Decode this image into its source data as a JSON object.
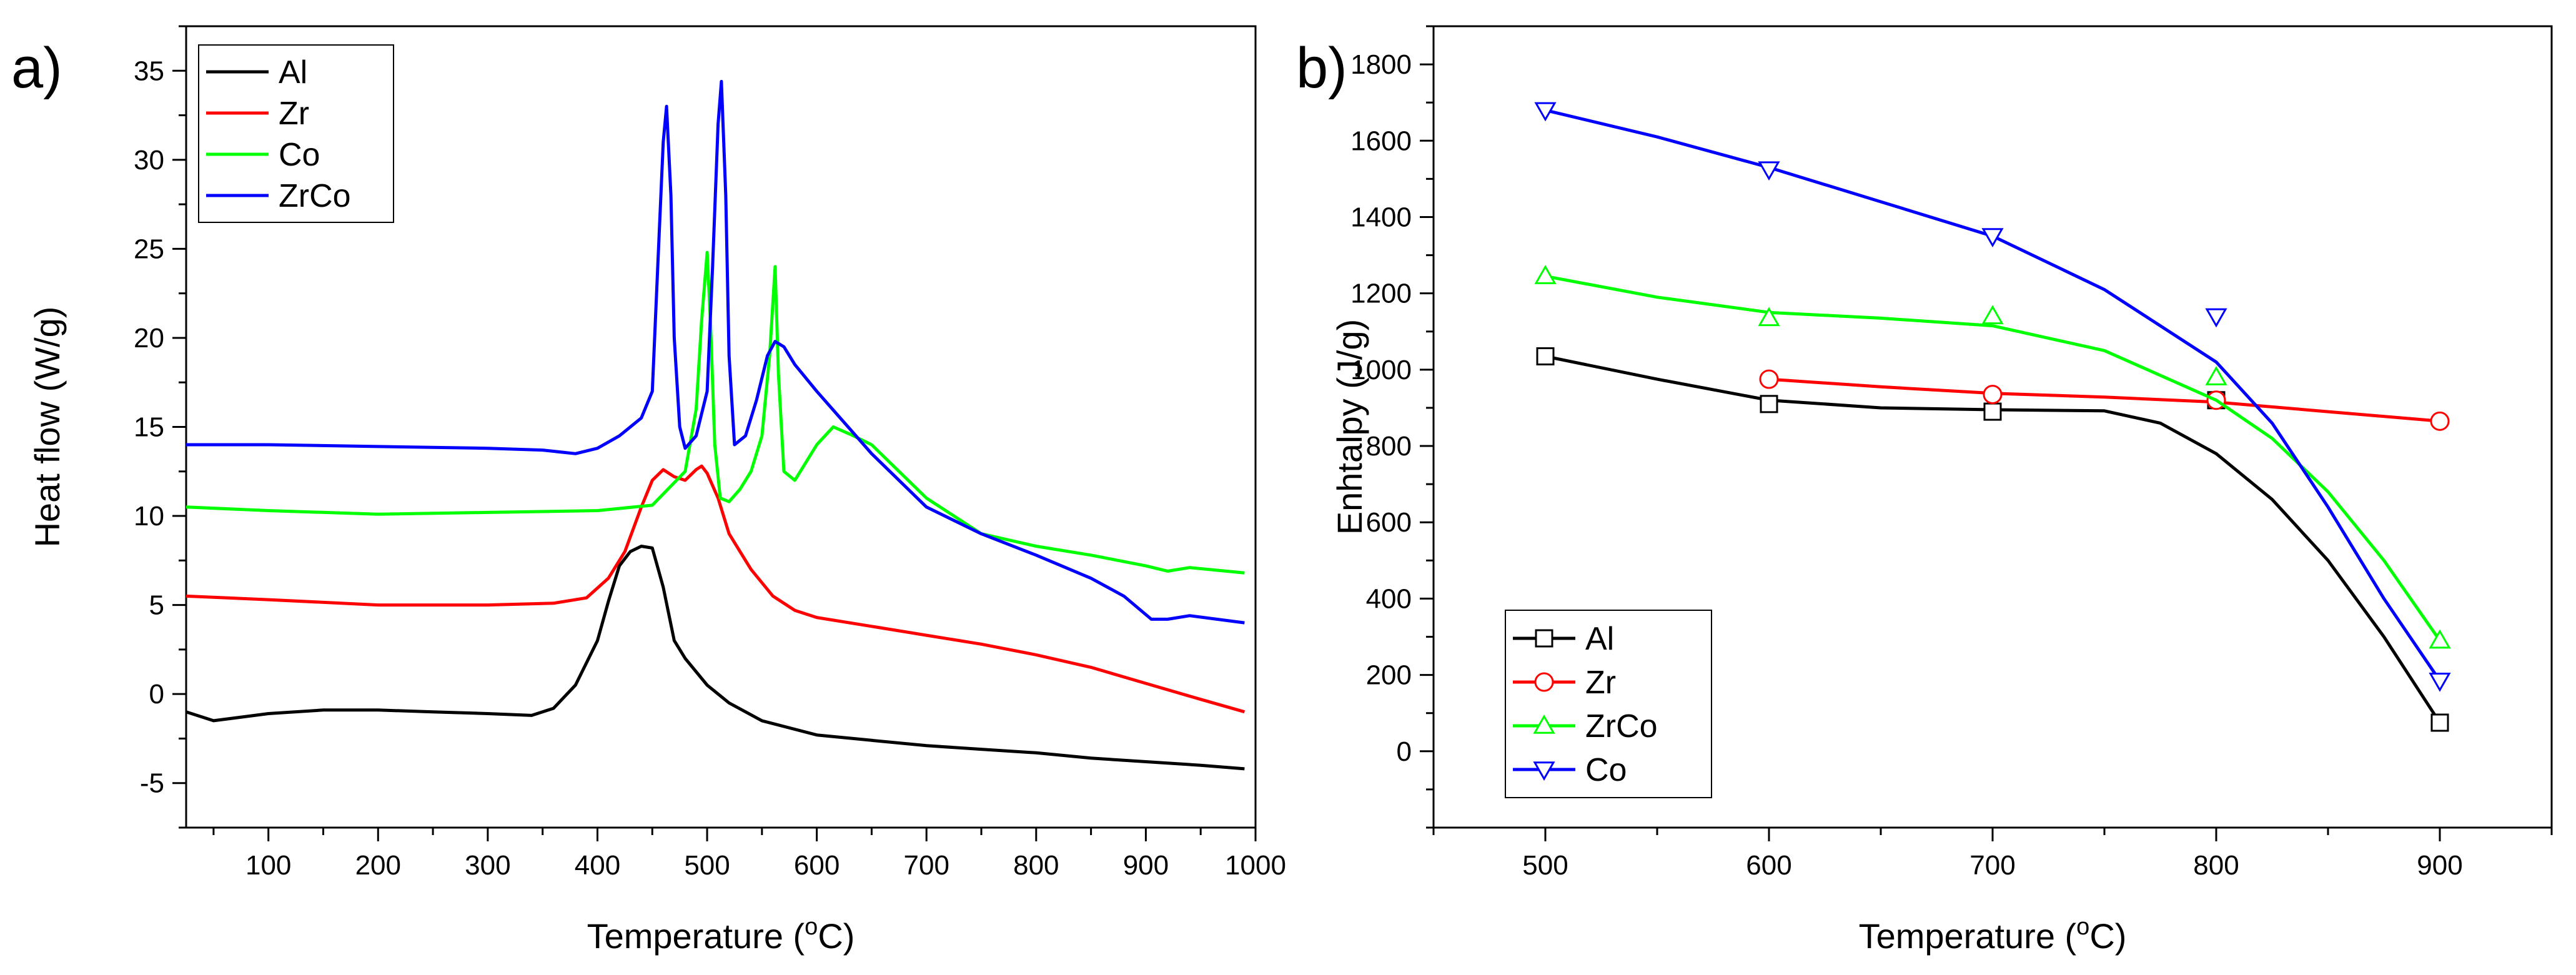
{
  "chart_data": [
    {
      "panel_label": "a)",
      "type": "line",
      "title": "",
      "xlabel": "Temperature (",
      "xlabel_sup": "o",
      "xlabel_unit": "C)",
      "ylabel": "Heat flow (W/g)",
      "xlim": [
        25,
        1000
      ],
      "ylim": [
        -7.5,
        37.5
      ],
      "xticks": [
        "100",
        "200",
        "300",
        "400",
        "500",
        "600",
        "700",
        "800",
        "900",
        "1000"
      ],
      "yticks": [
        "-5",
        "0",
        "5",
        "10",
        "15",
        "20",
        "25",
        "30",
        "35"
      ],
      "legend_position": "top-left",
      "series": [
        {
          "name": "Al",
          "color": "#000000",
          "x": [
            25,
            50,
            100,
            150,
            200,
            250,
            300,
            340,
            360,
            380,
            400,
            410,
            420,
            430,
            440,
            450,
            460,
            470,
            480,
            500,
            520,
            550,
            600,
            650,
            700,
            750,
            800,
            850,
            900,
            950,
            990
          ],
          "y": [
            -1.0,
            -1.5,
            -1.1,
            -0.9,
            -0.9,
            -1.0,
            -1.1,
            -1.2,
            -0.8,
            0.5,
            3.0,
            5.2,
            7.2,
            8.0,
            8.3,
            8.2,
            6.0,
            3.0,
            2.0,
            0.5,
            -0.5,
            -1.5,
            -2.3,
            -2.6,
            -2.9,
            -3.1,
            -3.3,
            -3.6,
            -3.8,
            -4.0,
            -4.2
          ]
        },
        {
          "name": "Zr",
          "color": "#ff0000",
          "x": [
            25,
            100,
            200,
            300,
            360,
            390,
            410,
            425,
            440,
            450,
            460,
            470,
            480,
            490,
            495,
            500,
            510,
            520,
            540,
            560,
            580,
            600,
            650,
            700,
            750,
            800,
            850,
            900,
            950,
            990
          ],
          "y": [
            5.5,
            5.3,
            5.0,
            5.0,
            5.1,
            5.4,
            6.5,
            8.0,
            10.5,
            12.0,
            12.6,
            12.2,
            12.0,
            12.6,
            12.8,
            12.4,
            11.0,
            9.0,
            7.0,
            5.5,
            4.7,
            4.3,
            3.8,
            3.3,
            2.8,
            2.2,
            1.5,
            0.6,
            -0.3,
            -1.0
          ]
        },
        {
          "name": "Co",
          "color": "#00ff00",
          "x": [
            25,
            100,
            200,
            300,
            400,
            450,
            480,
            490,
            495,
            500,
            503,
            507,
            512,
            520,
            530,
            540,
            550,
            557,
            562,
            565,
            570,
            580,
            600,
            615,
            630,
            650,
            700,
            750,
            800,
            850,
            900,
            920,
            940,
            990
          ],
          "y": [
            10.5,
            10.3,
            10.1,
            10.2,
            10.3,
            10.6,
            12.5,
            16.0,
            21.0,
            24.8,
            21.0,
            14.0,
            11.0,
            10.8,
            11.5,
            12.5,
            14.5,
            19.0,
            24.0,
            18.0,
            12.5,
            12.0,
            14.0,
            15.0,
            14.6,
            14.0,
            11.0,
            9.0,
            8.3,
            7.8,
            7.2,
            6.9,
            7.1,
            6.8
          ]
        },
        {
          "name": "ZrCo",
          "color": "#0000ff",
          "x": [
            25,
            100,
            200,
            300,
            350,
            380,
            400,
            420,
            440,
            450,
            455,
            460,
            463,
            467,
            470,
            475,
            480,
            490,
            500,
            505,
            510,
            513,
            517,
            520,
            525,
            535,
            545,
            555,
            562,
            570,
            580,
            600,
            650,
            700,
            750,
            800,
            850,
            880,
            905,
            920,
            940,
            990
          ],
          "y": [
            14.0,
            14.0,
            13.9,
            13.8,
            13.7,
            13.5,
            13.8,
            14.5,
            15.5,
            17.0,
            24.0,
            31.0,
            33.0,
            28.0,
            20.0,
            15.0,
            13.8,
            14.5,
            17.0,
            24.0,
            32.0,
            34.4,
            28.0,
            19.0,
            14.0,
            14.5,
            16.5,
            19.0,
            19.8,
            19.5,
            18.5,
            17.0,
            13.5,
            10.5,
            9.0,
            7.8,
            6.5,
            5.5,
            4.2,
            4.2,
            4.4,
            4.0
          ]
        }
      ]
    },
    {
      "panel_label": "b)",
      "type": "line",
      "title": "",
      "xlabel": "Temperature (",
      "xlabel_sup": "o",
      "xlabel_unit": "C)",
      "ylabel": "Enhtalpy (J/g)",
      "xlim": [
        450,
        950
      ],
      "ylim": [
        -200,
        1900
      ],
      "xticks": [
        "500",
        "600",
        "700",
        "800",
        "900"
      ],
      "yticks": [
        "0",
        "200",
        "400",
        "600",
        "800",
        "1000",
        "1200",
        "1400",
        "1600",
        "1800"
      ],
      "legend_position": "bottom-left",
      "series": [
        {
          "name": "Al",
          "color": "#000000",
          "marker": "square",
          "x": [
            500,
            600,
            700,
            800,
            900
          ],
          "y": [
            1035,
            910,
            890,
            920,
            75
          ],
          "curve": [
            [
              500,
              1035
            ],
            [
              550,
              975
            ],
            [
              600,
              920
            ],
            [
              650,
              900
            ],
            [
              700,
              895
            ],
            [
              750,
              892
            ],
            [
              775,
              860
            ],
            [
              800,
              780
            ],
            [
              825,
              660
            ],
            [
              850,
              500
            ],
            [
              875,
              300
            ],
            [
              900,
              75
            ]
          ]
        },
        {
          "name": "Zr",
          "color": "#ff0000",
          "marker": "circle",
          "x": [
            600,
            700,
            800,
            900
          ],
          "y": [
            975,
            935,
            920,
            865
          ],
          "curve": [
            [
              600,
              975
            ],
            [
              650,
              955
            ],
            [
              700,
              938
            ],
            [
              750,
              928
            ],
            [
              800,
              915
            ],
            [
              850,
              890
            ],
            [
              900,
              865
            ]
          ]
        },
        {
          "name": "ZrCo",
          "color": "#00ff00",
          "marker": "triangle-up",
          "x": [
            500,
            600,
            700,
            800,
            900
          ],
          "y": [
            1245,
            1135,
            1140,
            980,
            290
          ],
          "curve": [
            [
              500,
              1245
            ],
            [
              550,
              1190
            ],
            [
              600,
              1150
            ],
            [
              650,
              1135
            ],
            [
              700,
              1115
            ],
            [
              750,
              1050
            ],
            [
              800,
              920
            ],
            [
              825,
              820
            ],
            [
              850,
              680
            ],
            [
              875,
              500
            ],
            [
              900,
              290
            ]
          ]
        },
        {
          "name": "Co",
          "color": "#0000ff",
          "marker": "triangle-down",
          "x": [
            500,
            600,
            700,
            800,
            900
          ],
          "y": [
            1680,
            1525,
            1350,
            1140,
            185
          ],
          "curve": [
            [
              500,
              1680
            ],
            [
              550,
              1610
            ],
            [
              600,
              1530
            ],
            [
              650,
              1440
            ],
            [
              700,
              1350
            ],
            [
              750,
              1210
            ],
            [
              800,
              1020
            ],
            [
              825,
              860
            ],
            [
              850,
              640
            ],
            [
              875,
              400
            ],
            [
              900,
              185
            ]
          ]
        }
      ]
    }
  ]
}
